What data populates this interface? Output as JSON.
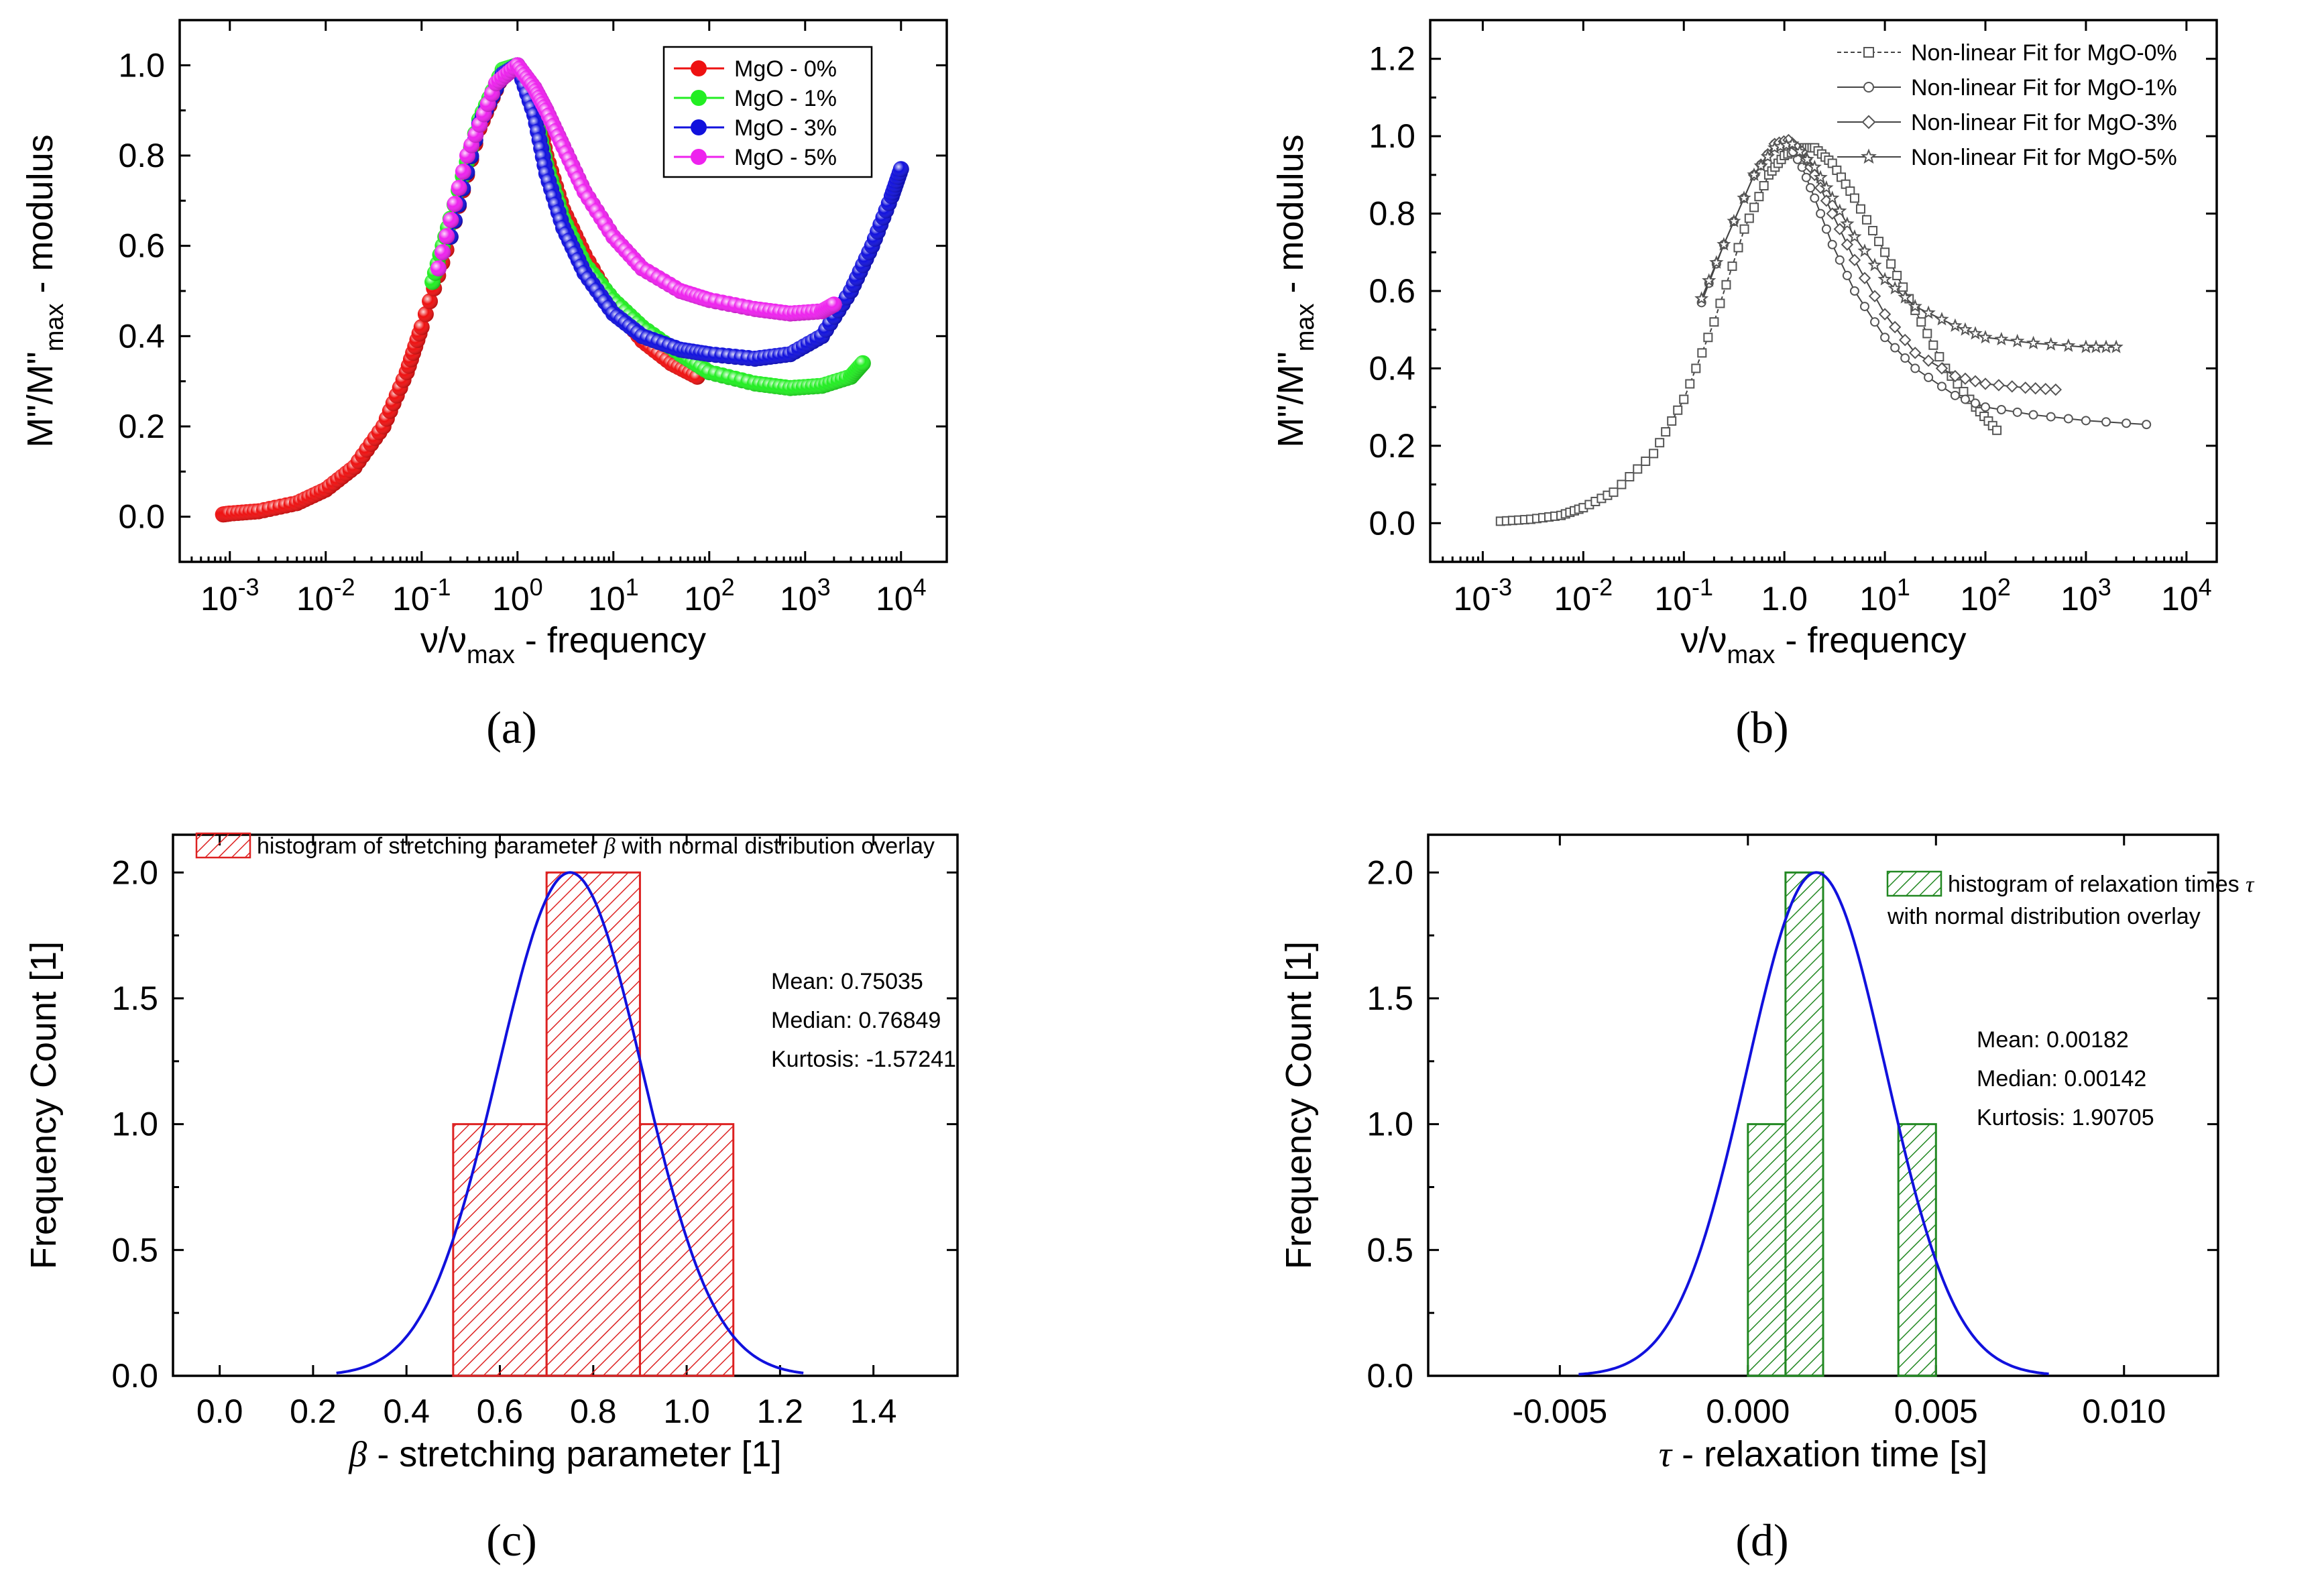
{
  "panel_labels": [
    "(a)",
    "(b)",
    "(c)",
    "(d)"
  ],
  "chart_data": [
    {
      "id": "a",
      "type": "scatter",
      "x_scale": "log",
      "xlim": [
        0.0003,
        30000
      ],
      "ylim": [
        -0.1,
        1.1
      ],
      "x_ticks": [
        0.001,
        0.01,
        0.1,
        1,
        10,
        100,
        1000,
        10000
      ],
      "x_tick_labels": [
        [
          "10",
          "-3"
        ],
        [
          "10",
          "-2"
        ],
        [
          "10",
          "-1"
        ],
        [
          "10",
          "0"
        ],
        [
          "10",
          "1"
        ],
        [
          "10",
          "2"
        ],
        [
          "10",
          "3"
        ],
        [
          "10",
          "4"
        ]
      ],
      "y_ticks": [
        0.0,
        0.2,
        0.4,
        0.6,
        0.8,
        1.0
      ],
      "y_tick_labels": [
        "0.0",
        "0.2",
        "0.4",
        "0.6",
        "0.8",
        "1.0"
      ],
      "xlabel": {
        "main": "ν/ν",
        "sub": "max",
        "rest": " - frequency"
      },
      "ylabel": {
        "main": "M\"/M\"",
        "sub": "max",
        "rest": " - modulus"
      },
      "legend": "top-right",
      "series": [
        {
          "name": "MgO - 0%",
          "color": "#ee1111",
          "points": [
            [
              0.00085,
              0.005
            ],
            [
              0.001,
              0.007
            ],
            [
              0.002,
              0.012
            ],
            [
              0.005,
              0.03
            ],
            [
              0.01,
              0.06
            ],
            [
              0.02,
              0.11
            ],
            [
              0.04,
              0.2
            ],
            [
              0.07,
              0.32
            ],
            [
              0.1,
              0.42
            ],
            [
              0.2,
              0.62
            ],
            [
              0.4,
              0.86
            ],
            [
              0.7,
              0.98
            ],
            [
              1,
              1.0
            ],
            [
              1.5,
              0.92
            ],
            [
              2,
              0.8
            ],
            [
              3,
              0.68
            ],
            [
              5,
              0.58
            ],
            [
              10,
              0.47
            ],
            [
              20,
              0.39
            ],
            [
              40,
              0.34
            ],
            [
              75,
              0.31
            ]
          ]
        },
        {
          "name": "MgO - 1%",
          "color": "#22ee22",
          "points": [
            [
              0.13,
              0.52
            ],
            [
              0.2,
              0.66
            ],
            [
              0.4,
              0.88
            ],
            [
              0.7,
              0.99
            ],
            [
              1,
              1.0
            ],
            [
              1.5,
              0.9
            ],
            [
              2,
              0.78
            ],
            [
              3,
              0.66
            ],
            [
              5,
              0.56
            ],
            [
              10,
              0.48
            ],
            [
              20,
              0.42
            ],
            [
              50,
              0.36
            ],
            [
              100,
              0.32
            ],
            [
              300,
              0.295
            ],
            [
              700,
              0.285
            ],
            [
              1500,
              0.29
            ],
            [
              3000,
              0.31
            ],
            [
              4000,
              0.34
            ]
          ]
        },
        {
          "name": "MgO - 3%",
          "color": "#1111dd",
          "points": [
            [
              0.2,
              0.62
            ],
            [
              0.4,
              0.87
            ],
            [
              0.7,
              0.98
            ],
            [
              1,
              1.0
            ],
            [
              1.5,
              0.89
            ],
            [
              2,
              0.76
            ],
            [
              3,
              0.64
            ],
            [
              5,
              0.54
            ],
            [
              10,
              0.45
            ],
            [
              20,
              0.4
            ],
            [
              50,
              0.37
            ],
            [
              100,
              0.36
            ],
            [
              300,
              0.35
            ],
            [
              700,
              0.36
            ],
            [
              1500,
              0.4
            ],
            [
              3000,
              0.5
            ],
            [
              5000,
              0.6
            ],
            [
              8000,
              0.71
            ],
            [
              10000,
              0.77
            ]
          ]
        },
        {
          "name": "MgO - 5%",
          "color": "#ee22ee",
          "points": [
            [
              0.15,
              0.55
            ],
            [
              0.3,
              0.8
            ],
            [
              0.6,
              0.96
            ],
            [
              1,
              1.0
            ],
            [
              1.5,
              0.95
            ],
            [
              2,
              0.9
            ],
            [
              3,
              0.82
            ],
            [
              5,
              0.72
            ],
            [
              10,
              0.62
            ],
            [
              20,
              0.55
            ],
            [
              50,
              0.5
            ],
            [
              100,
              0.48
            ],
            [
              300,
              0.46
            ],
            [
              700,
              0.45
            ],
            [
              1500,
              0.455
            ],
            [
              2000,
              0.47
            ]
          ]
        }
      ]
    },
    {
      "id": "b",
      "type": "line",
      "x_scale": "log",
      "xlim": [
        0.0003,
        20000
      ],
      "ylim": [
        -0.1,
        1.3
      ],
      "x_ticks": [
        0.001,
        0.01,
        0.1,
        1,
        10,
        100,
        1000,
        10000
      ],
      "x_tick_labels": [
        [
          "10",
          "-3"
        ],
        [
          "10",
          "-2"
        ],
        [
          "10",
          "-1"
        ],
        [
          "1.0",
          ""
        ],
        [
          "10",
          "1"
        ],
        [
          "10",
          "2"
        ],
        [
          "10",
          "3"
        ],
        [
          "10",
          "4"
        ]
      ],
      "y_ticks": [
        0.0,
        0.2,
        0.4,
        0.6,
        0.8,
        1.0,
        1.2
      ],
      "y_tick_labels": [
        "0.0",
        "0.2",
        "0.4",
        "0.6",
        "0.8",
        "1.0",
        "1.2"
      ],
      "xlabel": {
        "main": "ν/ν",
        "sub": "max",
        "rest": " - frequency"
      },
      "ylabel": {
        "main": "M\"/M\"",
        "sub": "max",
        "rest": " - modulus"
      },
      "legend": "top-right",
      "series": [
        {
          "name": "Non-linear Fit for MgO-0%",
          "marker": "square",
          "points": [
            [
              0.0015,
              0.005
            ],
            [
              0.003,
              0.01
            ],
            [
              0.006,
              0.02
            ],
            [
              0.01,
              0.04
            ],
            [
              0.02,
              0.08
            ],
            [
              0.05,
              0.18
            ],
            [
              0.1,
              0.32
            ],
            [
              0.2,
              0.52
            ],
            [
              0.4,
              0.76
            ],
            [
              0.7,
              0.9
            ],
            [
              1,
              0.95
            ],
            [
              1.5,
              0.97
            ],
            [
              2,
              0.97
            ],
            [
              3,
              0.93
            ],
            [
              5,
              0.84
            ],
            [
              10,
              0.7
            ],
            [
              20,
              0.55
            ],
            [
              40,
              0.4
            ],
            [
              80,
              0.3
            ],
            [
              130,
              0.24
            ]
          ]
        },
        {
          "name": "Non-linear Fit for MgO-1%",
          "marker": "circle",
          "points": [
            [
              0.15,
              0.57
            ],
            [
              0.25,
              0.72
            ],
            [
              0.5,
              0.9
            ],
            [
              0.8,
              0.98
            ],
            [
              1.1,
              0.98
            ],
            [
              1.5,
              0.92
            ],
            [
              2,
              0.84
            ],
            [
              3,
              0.72
            ],
            [
              5,
              0.6
            ],
            [
              10,
              0.48
            ],
            [
              20,
              0.4
            ],
            [
              50,
              0.33
            ],
            [
              100,
              0.3
            ],
            [
              300,
              0.28
            ],
            [
              1000,
              0.265
            ],
            [
              4000,
              0.255
            ]
          ]
        },
        {
          "name": "Non-linear Fit for MgO-3%",
          "marker": "diamond",
          "points": [
            [
              0.5,
              0.9
            ],
            [
              0.8,
              0.98
            ],
            [
              1.1,
              0.99
            ],
            [
              1.5,
              0.96
            ],
            [
              2,
              0.9
            ],
            [
              3,
              0.8
            ],
            [
              5,
              0.68
            ],
            [
              10,
              0.54
            ],
            [
              20,
              0.44
            ],
            [
              50,
              0.38
            ],
            [
              100,
              0.36
            ],
            [
              250,
              0.35
            ],
            [
              500,
              0.345
            ]
          ]
        },
        {
          "name": "Non-linear Fit for MgO-5%",
          "marker": "star",
          "points": [
            [
              0.15,
              0.58
            ],
            [
              0.25,
              0.72
            ],
            [
              0.5,
              0.9
            ],
            [
              0.8,
              0.97
            ],
            [
              1.2,
              0.98
            ],
            [
              2,
              0.92
            ],
            [
              3,
              0.84
            ],
            [
              5,
              0.74
            ],
            [
              10,
              0.63
            ],
            [
              20,
              0.56
            ],
            [
              50,
              0.51
            ],
            [
              100,
              0.48
            ],
            [
              300,
              0.465
            ],
            [
              1000,
              0.455
            ],
            [
              2000,
              0.455
            ]
          ]
        }
      ]
    },
    {
      "id": "c",
      "type": "bar",
      "xlim": [
        -0.1,
        1.58
      ],
      "ylim": [
        0,
        2.15
      ],
      "x_ticks": [
        0.0,
        0.2,
        0.4,
        0.6,
        0.8,
        1.0,
        1.2,
        1.4
      ],
      "x_tick_labels": [
        "0.0",
        "0.2",
        "0.4",
        "0.6",
        "0.8",
        "1.0",
        "1.2",
        "1.4"
      ],
      "y_ticks": [
        0.0,
        0.5,
        1.0,
        1.5,
        2.0
      ],
      "y_tick_labels": [
        "0.0",
        "0.5",
        "1.0",
        "1.5",
        "2.0"
      ],
      "xlabel": {
        "greek": "β",
        "rest": " - stretching parameter   [1]"
      },
      "ylabel": {
        "rest": "Frequency Count   [1]"
      },
      "bar_color": "#dd2222",
      "bins": [
        {
          "x0": 0.5,
          "x1": 0.7,
          "count": 1
        },
        {
          "x0": 0.7,
          "x1": 0.9,
          "count": 2
        },
        {
          "x0": 0.9,
          "x1": 1.1,
          "count": 1
        }
      ],
      "normal_overlay": {
        "mean": 0.7503,
        "sigma": 0.155,
        "peak": 2.0,
        "range": [
          0.25,
          1.25
        ],
        "color": "#1111dd"
      },
      "legend_text": {
        "before": "histogram of stretching parameter ",
        "greek": "β",
        "after": " with normal distribution overlay"
      },
      "legend": "top",
      "stats": [
        "Mean: 0.75035",
        "Median: 0.76849",
        "Kurtosis: -1.57241"
      ]
    },
    {
      "id": "d",
      "type": "bar",
      "xlim": [
        -0.0085,
        0.0125
      ],
      "ylim": [
        0,
        2.15
      ],
      "x_ticks": [
        -0.005,
        0.0,
        0.005,
        0.01
      ],
      "x_tick_labels": [
        "-0.005",
        "0.000",
        "0.005",
        "0.010"
      ],
      "y_ticks": [
        0.0,
        0.5,
        1.0,
        1.5,
        2.0
      ],
      "y_tick_labels": [
        "0.0",
        "0.5",
        "1.0",
        "1.5",
        "2.0"
      ],
      "xlabel": {
        "greek": "τ",
        "rest": " - relaxation time   [s]"
      },
      "ylabel": {
        "rest": "Frequency Count   [1]"
      },
      "bar_color": "#228822",
      "bins": [
        {
          "x0": 0.0,
          "x1": 0.001,
          "count": 1
        },
        {
          "x0": 0.001,
          "x1": 0.002,
          "count": 2
        },
        {
          "x0": 0.004,
          "x1": 0.005,
          "count": 1
        }
      ],
      "normal_overlay": {
        "mean": 0.00182,
        "sigma": 0.00185,
        "peak": 2.0,
        "range": [
          -0.0045,
          0.008
        ],
        "color": "#1111dd"
      },
      "legend_text": {
        "before": "histogram of relaxation times ",
        "greek": "τ",
        "after": "",
        "line2": "with normal distribution overlay"
      },
      "legend": "top-right",
      "stats": [
        "Mean: 0.00182",
        "Median: 0.00142",
        "Kurtosis: 1.90705"
      ]
    }
  ]
}
